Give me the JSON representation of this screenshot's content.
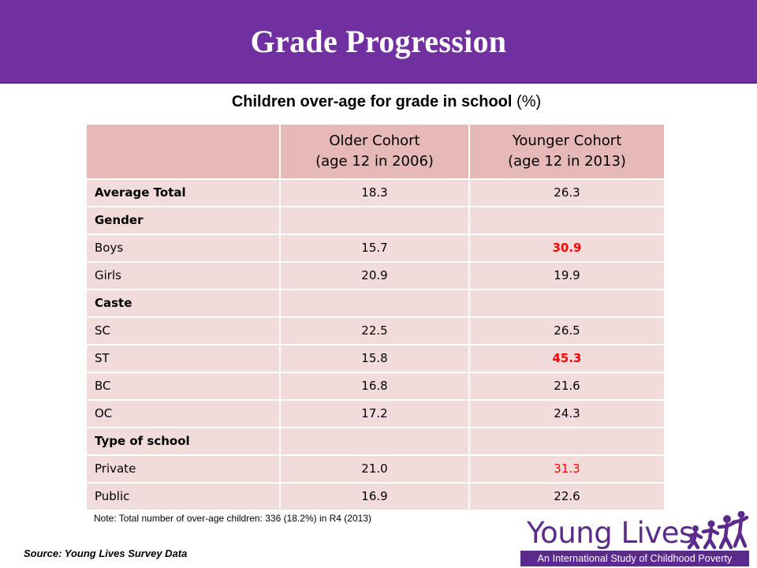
{
  "slide": {
    "title": "Grade Progression",
    "subtitle": "Children over-age for grade in school",
    "subtitle_unit": "(%)"
  },
  "table": {
    "header": {
      "col1": "",
      "col2_line1": "Older Cohort",
      "col2_line2": "(age 12 in 2006)",
      "col3_line1": "Younger Cohort",
      "col3_line2": "(age 12 in 2013)"
    },
    "rows": [
      {
        "label": "Average Total",
        "older": "18.3",
        "younger": "26.3"
      },
      {
        "label": "Gender",
        "older": "",
        "younger": ""
      },
      {
        "label": "Boys",
        "older": "15.7",
        "younger": "30.9"
      },
      {
        "label": "Girls",
        "older": "20.9",
        "younger": "19.9"
      },
      {
        "label": "Caste",
        "older": "",
        "younger": ""
      },
      {
        "label": "SC",
        "older": "22.5",
        "younger": "26.5"
      },
      {
        "label": "ST",
        "older": "15.8",
        "younger": "45.3"
      },
      {
        "label": "BC",
        "older": "16.8",
        "younger": "21.6"
      },
      {
        "label": "OC",
        "older": "17.2",
        "younger": "24.3"
      },
      {
        "label": "Type of school",
        "older": "",
        "younger": ""
      },
      {
        "label": "Private",
        "older": "21.0",
        "younger": "31.3"
      },
      {
        "label": "Public",
        "older": "16.9",
        "younger": "22.6"
      }
    ],
    "highlight_color": "#ff0000"
  },
  "note": "Note: Total number of over-age children: 336 (18.2%) in R4 (2013)",
  "source": "Source: Young Lives Survey Data",
  "logo": {
    "name": "Young Lives",
    "tagline": "An International Study of Childhood Poverty",
    "color": "#5b2b8c"
  },
  "colors": {
    "header_bar": "#7030a0",
    "table_header": "#e6b9b8",
    "table_body": "#f2dcdb"
  }
}
